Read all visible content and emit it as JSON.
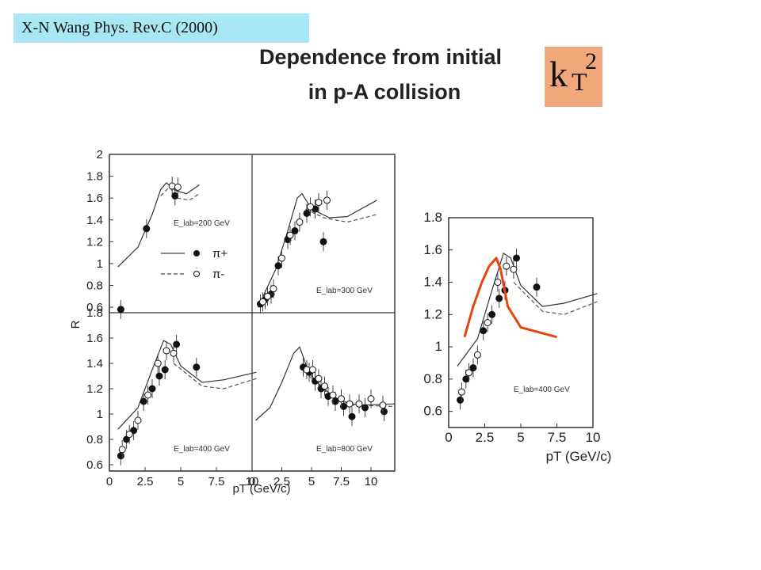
{
  "header": {
    "citation": "X-N  Wang Phys. Rev.C (2000)",
    "title_line1": "Dependence from initial",
    "title_line2": "in p-A collision",
    "kt_symbol": "k",
    "kt_sub": "T",
    "kt_sup": "2"
  },
  "colors": {
    "citation_bg": "#a9e7f5",
    "kt_bg": "#f2a77a",
    "red_curve": "#e8440f"
  },
  "chart_data": [
    {
      "type": "scatter",
      "panel": "left-top-left",
      "annotation": "E_lab=200 GeV",
      "legend": [
        "π+",
        "π-"
      ],
      "ylabel": "R",
      "ylim": [
        0.55,
        2.0
      ],
      "xlim": [
        0,
        10
      ],
      "yticks": [
        "0.6",
        "0.8",
        "1",
        "1.2",
        "1.4",
        "1.6",
        "1.8",
        "2"
      ],
      "series": [
        {
          "name": "π+",
          "points": [
            [
              0.8,
              0.58
            ],
            [
              2.6,
              1.32
            ],
            [
              4.6,
              1.62
            ]
          ]
        },
        {
          "name": "π-",
          "points": [
            [
              4.4,
              1.71
            ],
            [
              4.8,
              1.7
            ]
          ]
        }
      ],
      "curve_solid": [
        [
          0.6,
          0.97
        ],
        [
          2.0,
          1.15
        ],
        [
          3.0,
          1.45
        ],
        [
          3.6,
          1.68
        ],
        [
          4.0,
          1.74
        ],
        [
          4.6,
          1.67
        ],
        [
          5.4,
          1.64
        ],
        [
          6.3,
          1.72
        ]
      ],
      "curve_dashed": [
        [
          3.6,
          1.62
        ],
        [
          4.2,
          1.7
        ],
        [
          4.8,
          1.6
        ],
        [
          5.6,
          1.58
        ],
        [
          6.3,
          1.64
        ]
      ]
    },
    {
      "type": "scatter",
      "panel": "left-top-right",
      "annotation": "E_lab=300 GeV",
      "ylim": [
        0.55,
        2.0
      ],
      "xlim": [
        0,
        12
      ],
      "series": [
        {
          "name": "π+",
          "points": [
            [
              0.7,
              0.63
            ],
            [
              1.1,
              0.67
            ],
            [
              1.6,
              0.72
            ],
            [
              2.2,
              0.98
            ],
            [
              3.0,
              1.22
            ],
            [
              3.6,
              1.3
            ],
            [
              4.6,
              1.46
            ],
            [
              5.3,
              1.5
            ],
            [
              6.0,
              1.2
            ]
          ]
        },
        {
          "name": "π-",
          "points": [
            [
              0.9,
              0.65
            ],
            [
              1.3,
              0.7
            ],
            [
              1.8,
              0.77
            ],
            [
              2.5,
              1.05
            ],
            [
              3.2,
              1.26
            ],
            [
              4.0,
              1.38
            ],
            [
              4.9,
              1.52
            ],
            [
              5.6,
              1.56
            ],
            [
              6.3,
              1.58
            ]
          ]
        }
      ],
      "curve_solid": [
        [
          0.5,
          0.6
        ],
        [
          2.0,
          0.95
        ],
        [
          3.0,
          1.3
        ],
        [
          3.8,
          1.6
        ],
        [
          4.2,
          1.64
        ],
        [
          5.0,
          1.5
        ],
        [
          6.5,
          1.42
        ],
        [
          8.0,
          1.43
        ],
        [
          10.5,
          1.58
        ]
      ],
      "curve_dashed": [
        [
          4.5,
          1.5
        ],
        [
          6.0,
          1.42
        ],
        [
          8.0,
          1.38
        ],
        [
          10.5,
          1.45
        ]
      ]
    },
    {
      "type": "scatter",
      "panel": "left-bottom-left",
      "annotation": "E_lab=400 GeV",
      "ylim": [
        0.55,
        1.8
      ],
      "xlim": [
        0,
        10
      ],
      "xticks": [
        "0",
        "2.5",
        "5",
        "7.5",
        "10"
      ],
      "yticks": [
        "0.6",
        "0.8",
        "1",
        "1.2",
        "1.4",
        "1.6",
        "1.8"
      ],
      "series": [
        {
          "name": "π+",
          "points": [
            [
              0.8,
              0.67
            ],
            [
              1.2,
              0.8
            ],
            [
              1.7,
              0.87
            ],
            [
              2.4,
              1.1
            ],
            [
              3.0,
              1.2
            ],
            [
              3.5,
              1.3
            ],
            [
              3.9,
              1.35
            ],
            [
              4.7,
              1.55
            ],
            [
              6.1,
              1.37
            ]
          ]
        },
        {
          "name": "π-",
          "points": [
            [
              0.9,
              0.72
            ],
            [
              1.4,
              0.84
            ],
            [
              2.0,
              0.95
            ],
            [
              2.7,
              1.15
            ],
            [
              3.4,
              1.4
            ],
            [
              4.0,
              1.5
            ],
            [
              4.5,
              1.48
            ]
          ]
        }
      ],
      "curve_solid": [
        [
          0.6,
          0.88
        ],
        [
          2.0,
          1.05
        ],
        [
          3.0,
          1.35
        ],
        [
          3.8,
          1.58
        ],
        [
          4.3,
          1.55
        ],
        [
          5.0,
          1.38
        ],
        [
          6.5,
          1.25
        ],
        [
          8.0,
          1.27
        ],
        [
          10.3,
          1.33
        ]
      ],
      "curve_dashed": [
        [
          4.5,
          1.4
        ],
        [
          6.5,
          1.22
        ],
        [
          8.0,
          1.2
        ],
        [
          10.3,
          1.28
        ]
      ]
    },
    {
      "type": "scatter",
      "panel": "left-bottom-right",
      "annotation": "E_lab=800 GeV",
      "ylim": [
        0.55,
        1.8
      ],
      "xlim": [
        0,
        12
      ],
      "xticks": [
        "0",
        "2.5",
        "5",
        "7.5",
        "10"
      ],
      "xlabel": "pT (GeV/c)",
      "series": [
        {
          "name": "π+",
          "points": [
            [
              4.3,
              1.37
            ],
            [
              4.8,
              1.33
            ],
            [
              5.3,
              1.26
            ],
            [
              5.8,
              1.2
            ],
            [
              6.4,
              1.14
            ],
            [
              7.0,
              1.1
            ],
            [
              7.7,
              1.06
            ],
            [
              8.4,
              0.98
            ],
            [
              9.5,
              1.05
            ],
            [
              11.1,
              1.02
            ]
          ]
        },
        {
          "name": "π-",
          "points": [
            [
              4.6,
              1.35
            ],
            [
              5.1,
              1.35
            ],
            [
              5.6,
              1.28
            ],
            [
              6.1,
              1.22
            ],
            [
              6.8,
              1.15
            ],
            [
              7.5,
              1.12
            ],
            [
              8.2,
              1.08
            ],
            [
              9.0,
              1.08
            ],
            [
              10.0,
              1.12
            ],
            [
              11.0,
              1.07
            ]
          ]
        }
      ],
      "curve_solid": [
        [
          0.3,
          0.95
        ],
        [
          1.5,
          1.05
        ],
        [
          2.5,
          1.25
        ],
        [
          3.5,
          1.48
        ],
        [
          4.0,
          1.53
        ],
        [
          4.8,
          1.32
        ],
        [
          6.0,
          1.2
        ],
        [
          7.5,
          1.1
        ],
        [
          9.0,
          1.07
        ],
        [
          12.0,
          1.08
        ]
      ],
      "curve_dashed": [
        [
          4.8,
          1.3
        ],
        [
          6.5,
          1.15
        ],
        [
          8.5,
          1.07
        ],
        [
          12.0,
          1.06
        ]
      ]
    },
    {
      "type": "scatter",
      "panel": "right",
      "annotation": "E_lab=400 GeV",
      "xlabel": "pT (GeV/c)",
      "ylim": [
        0.5,
        1.8
      ],
      "xlim": [
        0,
        10
      ],
      "xticks": [
        "0",
        "2.5",
        "5",
        "7.5",
        "10"
      ],
      "yticks": [
        "0.6",
        "0.8",
        "1",
        "1.2",
        "1.4",
        "1.6",
        "1.8"
      ],
      "series": [
        {
          "name": "π+",
          "points": [
            [
              0.8,
              0.67
            ],
            [
              1.2,
              0.8
            ],
            [
              1.7,
              0.87
            ],
            [
              2.4,
              1.1
            ],
            [
              3.0,
              1.2
            ],
            [
              3.5,
              1.3
            ],
            [
              3.9,
              1.35
            ],
            [
              4.7,
              1.55
            ],
            [
              6.1,
              1.37
            ]
          ]
        },
        {
          "name": "π-",
          "points": [
            [
              0.9,
              0.72
            ],
            [
              1.4,
              0.84
            ],
            [
              2.0,
              0.95
            ],
            [
              2.7,
              1.15
            ],
            [
              3.4,
              1.4
            ],
            [
              4.0,
              1.5
            ],
            [
              4.5,
              1.48
            ]
          ]
        },
        {
          "name": "red",
          "points": [
            [
              1.1,
              1.06
            ],
            [
              1.7,
              1.25
            ],
            [
              2.3,
              1.4
            ],
            [
              2.8,
              1.5
            ],
            [
              3.3,
              1.55
            ],
            [
              3.6,
              1.48
            ],
            [
              4.1,
              1.25
            ],
            [
              5.0,
              1.12
            ],
            [
              7.5,
              1.06
            ]
          ]
        }
      ],
      "curve_solid": [
        [
          0.6,
          0.88
        ],
        [
          2.0,
          1.05
        ],
        [
          3.0,
          1.35
        ],
        [
          3.8,
          1.58
        ],
        [
          4.3,
          1.55
        ],
        [
          5.0,
          1.38
        ],
        [
          6.5,
          1.25
        ],
        [
          8.0,
          1.27
        ],
        [
          10.3,
          1.33
        ]
      ],
      "curve_dashed": [
        [
          4.5,
          1.4
        ],
        [
          6.5,
          1.22
        ],
        [
          8.0,
          1.2
        ],
        [
          10.3,
          1.28
        ]
      ]
    }
  ]
}
